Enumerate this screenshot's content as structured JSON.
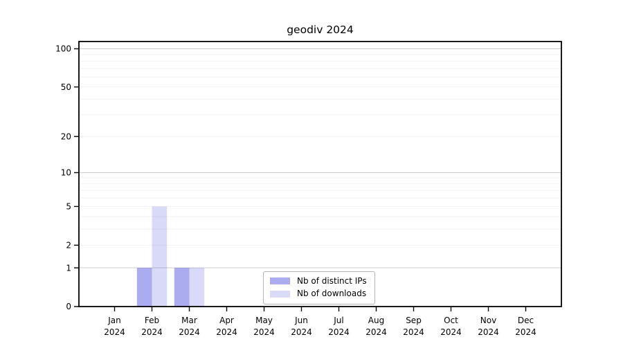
{
  "chart_data": {
    "type": "bar",
    "title": "geodiv 2024",
    "categories": [
      "Jan",
      "Feb",
      "Mar",
      "Apr",
      "May",
      "Jun",
      "Jul",
      "Aug",
      "Sep",
      "Oct",
      "Nov",
      "Dec"
    ],
    "x_year_label": "2024",
    "series": [
      {
        "name": "Nb of distinct IPs",
        "values": [
          0,
          1,
          1,
          0,
          0,
          0,
          0,
          0,
          0,
          0,
          0,
          0
        ],
        "color": "rgba(0,0,205,0.33)"
      },
      {
        "name": "Nb of downloads",
        "values": [
          0,
          5,
          1,
          0,
          0,
          0,
          0,
          0,
          0,
          0,
          0,
          0
        ],
        "color": "rgba(0,0,205,0.15)"
      }
    ],
    "yticks": [
      0,
      1,
      2,
      5,
      10,
      20,
      50,
      100
    ],
    "ylim": [
      0,
      114
    ],
    "scale": "log1p",
    "grid": "on",
    "grid_major_at": [
      1,
      10,
      100
    ],
    "legend_position": "lower center"
  },
  "colors": {
    "background": "#ffffff",
    "spine": "#000000",
    "grid_major": "#cccccc",
    "grid_minor": "#f2f2f2",
    "tick": "#000000",
    "legend_border": "#b3b3b3"
  }
}
